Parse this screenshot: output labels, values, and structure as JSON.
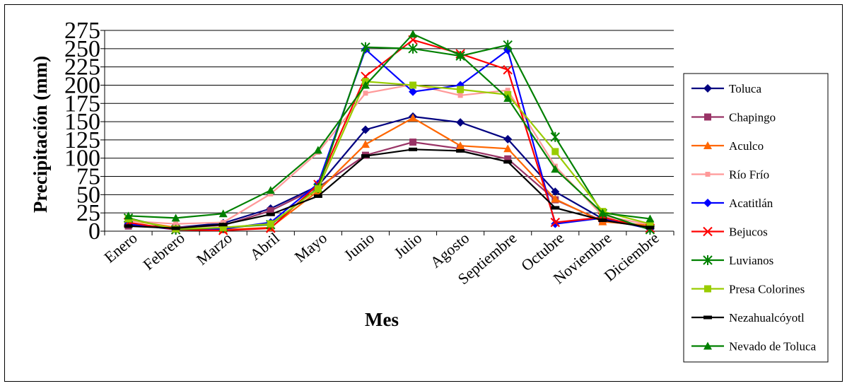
{
  "chart_data": {
    "type": "line",
    "title": "",
    "xlabel": "Mes",
    "ylabel": "Precipitación (mm)",
    "ylim": [
      0,
      275
    ],
    "yticks": [
      0,
      25,
      50,
      75,
      100,
      125,
      150,
      175,
      200,
      225,
      250,
      275
    ],
    "grid": "horizontal",
    "legend_position": "right",
    "categories": [
      "Enero",
      "Febrero",
      "Marzo",
      "Abril",
      "Mayo",
      "Junio",
      "Julio",
      "Agosto",
      "Septiembre",
      "Octubre",
      "Noviembre",
      "Diciembre"
    ],
    "series": [
      {
        "name": "Toluca",
        "color": "#000080",
        "marker": "diamond",
        "values": [
          9,
          5,
          11,
          31,
          62,
          139,
          157,
          149,
          126,
          54,
          17,
          6
        ]
      },
      {
        "name": "Chapingo",
        "color": "#993366",
        "marker": "square",
        "values": [
          7,
          5,
          8,
          28,
          60,
          104,
          122,
          113,
          99,
          43,
          14,
          6
        ]
      },
      {
        "name": "Aculco",
        "color": "#FF6600",
        "marker": "triangle",
        "values": [
          15,
          5,
          2,
          5,
          55,
          119,
          155,
          117,
          113,
          44,
          13,
          8
        ]
      },
      {
        "name": "Río Frío",
        "color": "#FF9999",
        "marker": "smallsquare",
        "values": [
          14,
          10,
          12,
          51,
          108,
          189,
          201,
          186,
          193,
          89,
          21,
          9
        ]
      },
      {
        "name": "Acatitlán",
        "color": "#0000FF",
        "marker": "diamond",
        "values": [
          10,
          2,
          3,
          12,
          65,
          249,
          191,
          200,
          248,
          10,
          18,
          3
        ]
      },
      {
        "name": "Bejucos",
        "color": "#FF0000",
        "marker": "x",
        "values": [
          12,
          2,
          1,
          4,
          64,
          212,
          262,
          243,
          221,
          12,
          19,
          4
        ]
      },
      {
        "name": "Luvianos",
        "color": "#008000",
        "marker": "star",
        "values": [
          18,
          2,
          5,
          9,
          59,
          252,
          250,
          240,
          255,
          129,
          24,
          2
        ]
      },
      {
        "name": "Presa Colorines",
        "color": "#99CC00",
        "marker": "square",
        "values": [
          17,
          3,
          5,
          10,
          58,
          205,
          200,
          194,
          187,
          109,
          27,
          10
        ]
      },
      {
        "name": "Nezahualcóyotl",
        "color": "#000000",
        "marker": "dash",
        "values": [
          7,
          4,
          9,
          23,
          48,
          103,
          112,
          110,
          95,
          32,
          15,
          5
        ]
      },
      {
        "name": "Nevado de Toluca",
        "color": "#008000",
        "marker": "triangle",
        "values": [
          21,
          18,
          24,
          56,
          111,
          200,
          270,
          241,
          182,
          85,
          25,
          17
        ]
      }
    ]
  }
}
